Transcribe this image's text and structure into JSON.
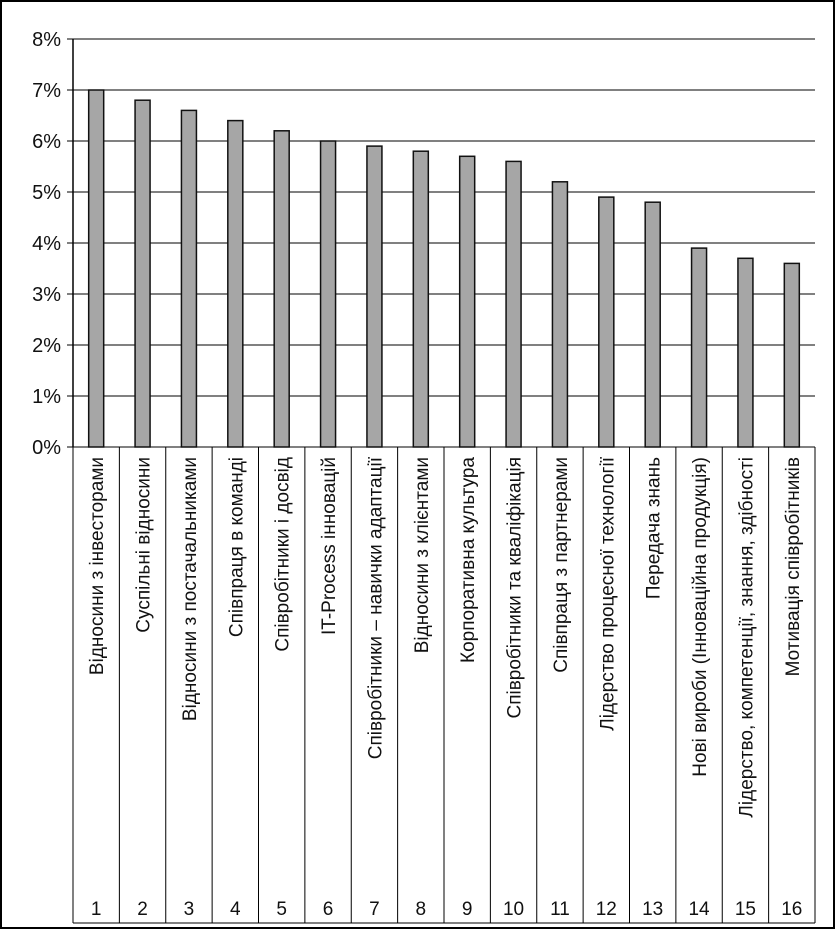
{
  "chart_data": {
    "type": "bar",
    "title": "",
    "xlabel": "",
    "ylabel": "",
    "ylim": [
      0,
      8
    ],
    "y_ticks": [
      "0%",
      "1%",
      "2%",
      "3%",
      "4%",
      "5%",
      "6%",
      "7%",
      "8%"
    ],
    "grid": true,
    "legend": "none",
    "bar_color": "#a6a6a6",
    "bar_outline": "#111111",
    "categories": [
      "Відносини з інвесторами",
      "Суспільні відносини",
      "Відносини з постачальниками",
      "Співпраця в команді",
      "Співробітники і досвід",
      "IT-Process інновацій",
      "Співробітники – навички адаптації",
      "Відносини з клієнтами",
      "Корпоративна культура",
      "Співробітники та кваліфікація",
      "Співпраця з партнерами",
      "Лідерство процесної технології",
      "Передача знань",
      "Нові вироби (Інноваційна продукція)",
      "Лідерство, компетенції, знання, здібності",
      "Мотивація співробітників"
    ],
    "numbers": [
      "1",
      "2",
      "3",
      "4",
      "5",
      "6",
      "7",
      "8",
      "9",
      "10",
      "11",
      "12",
      "13",
      "14",
      "15",
      "16"
    ],
    "values": [
      7.0,
      6.8,
      6.6,
      6.4,
      6.2,
      6.0,
      5.9,
      5.8,
      5.7,
      5.6,
      5.2,
      4.9,
      4.8,
      3.9,
      3.7,
      3.6
    ]
  }
}
